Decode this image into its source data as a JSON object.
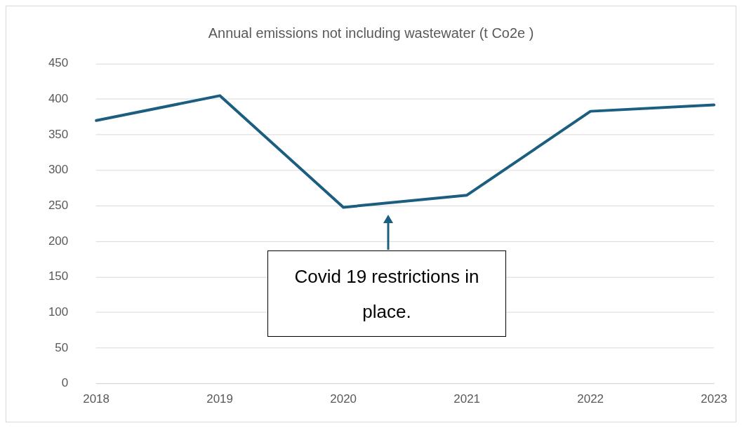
{
  "chart_data": {
    "type": "line",
    "title": "Annual emissions not including wastewater (t Co2e )",
    "categories": [
      "2018",
      "2019",
      "2020",
      "2021",
      "2022",
      "2023"
    ],
    "series": [
      {
        "color": "#1b5e80",
        "values": [
          370,
          405,
          248,
          265,
          383,
          392
        ]
      }
    ],
    "ylim": [
      0,
      450
    ],
    "yticks": [
      0,
      50,
      100,
      150,
      200,
      250,
      300,
      350,
      400,
      450
    ],
    "grid": "y",
    "legend": false,
    "marker": "none",
    "line_style": "solid",
    "annotations": [
      "Covid 19 restrictions in place."
    ]
  }
}
